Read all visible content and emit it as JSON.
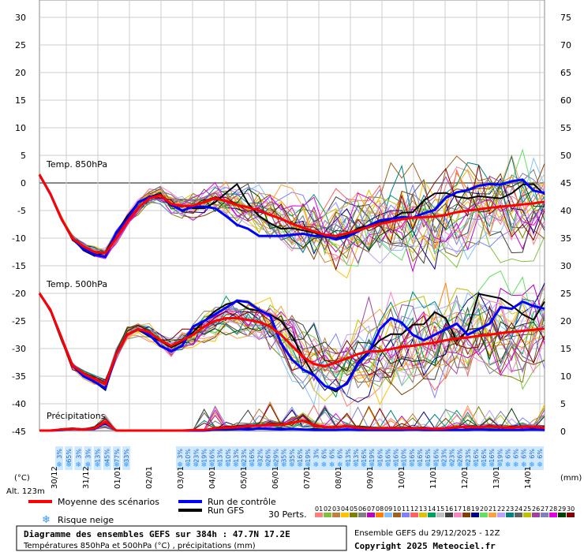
{
  "chart_data": {
    "type": "line",
    "title": "Diagramme des ensembles GEFS sur 384h : 47.7N 17.2E",
    "subtitle": "Températures 850hPa et 500hPa (°C) , précipitations (mm)",
    "ensemble_info": "Ensemble GEFS du 29/12/2025 - 12Z",
    "copyright": "Copyright 2025 Meteociel.fr",
    "altitude": "Alt. 123m",
    "left_axis_unit": "(°C)",
    "right_axis_unit": "(mm)",
    "left_ticks": [
      "30",
      "25",
      "20",
      "15",
      "10",
      "5",
      "0",
      "-5",
      "-10",
      "-15",
      "-20",
      "-25",
      "-30",
      "-35",
      "-40",
      "-45"
    ],
    "right_ticks": [
      "75",
      "70",
      "65",
      "60",
      "55",
      "50",
      "45",
      "40",
      "35",
      "30",
      "25",
      "20",
      "15",
      "10",
      "5",
      "0"
    ],
    "x_labels": [
      "30/12",
      "31/12",
      "01/01",
      "02/01",
      "03/01",
      "04/01",
      "05/01",
      "06/01",
      "07/01",
      "08/01",
      "09/01",
      "10/01",
      "11/01",
      "12/01",
      "13/01",
      "14/01"
    ],
    "x_domain": [
      0,
      64
    ],
    "ylim": [
      -45,
      30
    ],
    "panel_labels": {
      "t850": "Temp. 850hPa",
      "t500": "Temp. 500hPa",
      "precip": "Précipitations"
    },
    "series": [
      {
        "name": "Moyenne des scénarios",
        "color": "#ff0000",
        "t850": [
          1.5,
          -2,
          -6.5,
          -10,
          -11.5,
          -12.5,
          -12.7,
          -10,
          -7,
          -4.5,
          -2.8,
          -2.2,
          -3.8,
          -4.2,
          -4.1,
          -3.5,
          -2.8,
          -3.3,
          -4,
          -4.4,
          -5,
          -5.8,
          -6.5,
          -7.4,
          -8.1,
          -8.8,
          -9.4,
          -9.6,
          -9.1,
          -8.6,
          -8,
          -7.4,
          -7,
          -6.6,
          -6.3,
          -6.2,
          -6.1,
          -5.8,
          -5.3,
          -5,
          -4.8,
          -4.5,
          -4.3,
          -4.1,
          -3.9,
          -3.7,
          -3.4
        ],
        "t500": [
          -20,
          -23,
          -28,
          -33,
          -34.5,
          -35.5,
          -36.5,
          -31,
          -27.5,
          -26.5,
          -27,
          -28.5,
          -29.5,
          -28.5,
          -27.5,
          -26,
          -25,
          -24.5,
          -24.5,
          -24.8,
          -25.2,
          -26,
          -27.5,
          -29.5,
          -31.5,
          -32.8,
          -33.2,
          -32.5,
          -31.8,
          -31,
          -30.5,
          -30.5,
          -30.1,
          -29.7,
          -29.5,
          -29.2,
          -28.9,
          -28.5,
          -28.2,
          -28,
          -27.7,
          -27.5,
          -27.2,
          -27,
          -26.8,
          -26.6,
          -26.4
        ],
        "precip": [
          0,
          0,
          0.2,
          0.3,
          0.2,
          0.4,
          1.6,
          0,
          0,
          0,
          0,
          0,
          0,
          0,
          0.1,
          0.1,
          0.4,
          0.5,
          0.6,
          0.8,
          0.9,
          1.1,
          1.0,
          1.4,
          1.8,
          1.0,
          0.6,
          0.6,
          0.8,
          0.5,
          0.4,
          0.4,
          0.4,
          0.4,
          0.4,
          0.4,
          0.3,
          0.4,
          0.6,
          0.7,
          0.6,
          0.7,
          0.6,
          0.5,
          0.7,
          0.7,
          0.5
        ]
      },
      {
        "name": "Run de contrôle",
        "color": "#0000ff",
        "t850": [
          1.5,
          -2,
          -6.5,
          -10,
          -12,
          -13,
          -13.4,
          -9,
          -6.5,
          -3.5,
          -2.6,
          -2.2,
          -4,
          -5,
          -4.3,
          -4.3,
          -4.6,
          -6,
          -7.6,
          -8.3,
          -9.6,
          -9.6,
          -9.6,
          -9.4,
          -9.2,
          -9.6,
          -9.6,
          -10.2,
          -9.8,
          -8.8,
          -7.7,
          -6.8,
          -6.5,
          -6.2,
          -6.3,
          -5.5,
          -4.9,
          -2.7,
          -1.7,
          -1.3,
          -0.5,
          -0.2,
          -0.3,
          0.3,
          0.6,
          -1.4,
          -1.8
        ],
        "t500": [
          -20,
          -23,
          -28,
          -33,
          -35,
          -36,
          -37.2,
          -31,
          -27.5,
          -26.5,
          -27.5,
          -29.5,
          -30.5,
          -29.5,
          -26,
          -25,
          -23.8,
          -22.6,
          -21.3,
          -21.6,
          -23,
          -24,
          -29,
          -32,
          -33.8,
          -34.8,
          -36.8,
          -37.4,
          -36.4,
          -32.8,
          -30.8,
          -26.5,
          -24.5,
          -25.3,
          -27.5,
          -28.5,
          -27.5,
          -26.5,
          -25.5,
          -27.5,
          -26.5,
          -25.5,
          -22.5,
          -22.8,
          -21.5,
          -22.3,
          -22.8
        ],
        "precip": [
          0,
          0,
          0.1,
          0.3,
          0.2,
          0.3,
          1.4,
          0,
          0,
          0,
          0,
          0,
          0,
          0,
          0,
          0,
          0.2,
          0.3,
          0.3,
          0.2,
          0.4,
          0.3,
          0.2,
          0.3,
          0.2,
          0.1,
          0.1,
          0.1,
          0.2,
          0.1,
          0.1,
          0.1,
          0.1,
          0.1,
          0.2,
          0.1,
          0.1,
          0.1,
          0.1,
          0.1,
          0.2,
          0.1,
          0.1,
          0.1,
          0.1,
          0.2,
          0.1
        ]
      },
      {
        "name": "Run GFS",
        "color": "#000000",
        "t850": [
          1.5,
          -2,
          -6.5,
          -10,
          -12.2,
          -13.2,
          -12.6,
          -9,
          -6,
          -3.5,
          -2.5,
          -2,
          -3.8,
          -4.1,
          -4.6,
          -4.6,
          -3.5,
          -1.8,
          -0.2,
          -3.7,
          -6,
          -7.3,
          -8.3,
          -8.2,
          -8.6,
          -9,
          -9.8,
          -10,
          -9.5,
          -8.2,
          -7.7,
          -7.2,
          -6.6,
          -5.4,
          -5.3,
          -3.2,
          -1.9,
          -1.8,
          -2.5,
          -2.8,
          -2.4,
          -2.6,
          -2.8,
          -1.9,
          -0.3,
          -0.2,
          -2.1
        ],
        "t500": [
          -20,
          -23,
          -28,
          -33,
          -35,
          -36,
          -37.5,
          -31,
          -27.5,
          -26.6,
          -27.8,
          -28.6,
          -29.8,
          -28.8,
          -27,
          -25,
          -23.2,
          -22,
          -21.5,
          -22.8,
          -23.2,
          -23.8,
          -25,
          -27.7,
          -31.5,
          -34.8,
          -36.8,
          -37.8,
          -36.1,
          -32.5,
          -30.4,
          -28.5,
          -27.4,
          -27.4,
          -25.7,
          -25.6,
          -23.4,
          -24.5,
          -28.6,
          -26.7,
          -20.1,
          -20.5,
          -20.9,
          -22.2,
          -23.8,
          -24.8,
          -21.5
        ],
        "precip": [
          0,
          0,
          0.1,
          0.2,
          0.3,
          0.3,
          1.3,
          0,
          0,
          0,
          0,
          0,
          0,
          0,
          0,
          0,
          0.1,
          0.1,
          0.2,
          0.4,
          0.3,
          0.3,
          0.4,
          0.3,
          0.2,
          0.3,
          0.2,
          0.1,
          0.1,
          0.2,
          0.1,
          0.1,
          0.1,
          0.1,
          0.1,
          0.2,
          0.1,
          0.1,
          0.1,
          0.2,
          0.1,
          0.2,
          0.1,
          0.1,
          0.1,
          0.1,
          0.1
        ]
      }
    ],
    "perturbations": {
      "label": "30 Perts.",
      "count": 30
    },
    "snow_risk": {
      "label": "Risque neige",
      "values": [
        "3%",
        "65%",
        "3%",
        "3%",
        "13%",
        "45%",
        "77%",
        "33%",
        "3%",
        "10%",
        "23%",
        "19%",
        "16%",
        "13%",
        "10%",
        "13%",
        "23%",
        "16%",
        "32%",
        "26%",
        "29%",
        "35%",
        "35%",
        "16%",
        "19%",
        "3%",
        "6%",
        "6%",
        "6%",
        "13%",
        "13%",
        "16%",
        "19%",
        "16%",
        "16%",
        "16%",
        "10%",
        "16%",
        "16%",
        "16%",
        "16%",
        "23%",
        "23%",
        "26%",
        "23%",
        "16%",
        "16%",
        "16%",
        "19%",
        "6%",
        "6%",
        "6%",
        "6%",
        "6%"
      ]
    }
  },
  "legend": {
    "mean_label": "Moyenne des scénarios",
    "control_label": "Run de contrôle",
    "gfs_label": "Run GFS",
    "perts_label": "30 Perts.",
    "snow_label": "Risque neige",
    "pert_numbers": [
      "01",
      "02",
      "03",
      "04",
      "05",
      "06",
      "07",
      "08",
      "09",
      "10",
      "11",
      "12",
      "13",
      "14",
      "15",
      "16",
      "17",
      "18",
      "19",
      "20",
      "21",
      "22",
      "23",
      "24",
      "25",
      "26",
      "27",
      "28",
      "29",
      "30"
    ],
    "pert_colors": [
      "#ff8080",
      "#80c040",
      "#c08040",
      "#ffc000",
      "#808000",
      "#808080",
      "#c000c0",
      "#ff8000",
      "#80c0ff",
      "#a06020",
      "#8080ff",
      "#ff6060",
      "#e0c000",
      "#00a060",
      "#c0c0c0",
      "#404040",
      "#ff80c0",
      "#804000",
      "#000080",
      "#60e060",
      "#ffa040",
      "#c0a0ff",
      "#008080",
      "#606060",
      "#c0c000",
      "#a040a0",
      "#8080c0",
      "#e000e0",
      "#004000",
      "#800000"
    ]
  },
  "footer": {
    "title": "Diagramme des ensembles GEFS sur 384h : 47.7N 17.2E",
    "subtitle": "Températures 850hPa et 500hPa (°C) , précipitations (mm)",
    "ensemble": "Ensemble GEFS du 29/12/2025 - 12Z",
    "copyright": "Copyright 2025 Meteociel.fr"
  }
}
